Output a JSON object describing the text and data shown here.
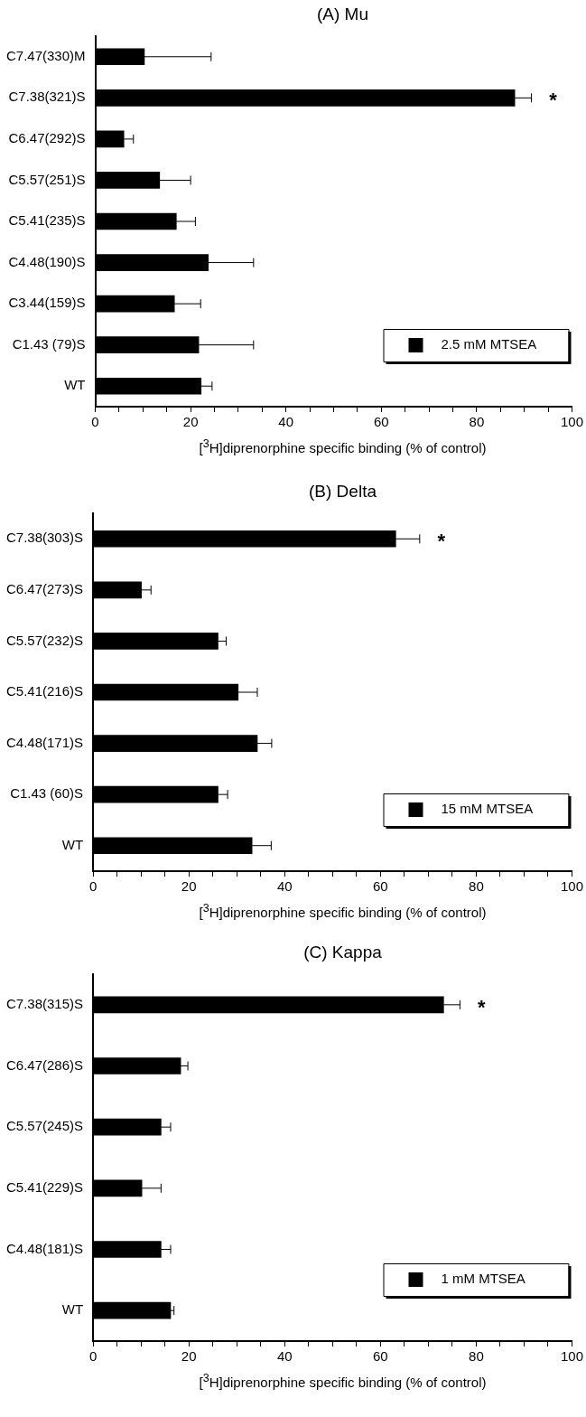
{
  "chart_data": [
    {
      "type": "bar",
      "orientation": "horizontal",
      "title": "(A) Mu",
      "xlabel": "[$^{3}$H]diprenorphine specific binding (% of control)",
      "categories": [
        "C7.47(330)M",
        "C7.38(321)S",
        "C6.47(292)S",
        "C5.57(251)S",
        "C5.41(235)S",
        "C4.48(190)S",
        "C3.44(159)S",
        "C1.43 (79)S",
        "WT"
      ],
      "series": [
        {
          "name": "2.5 mM MTSEA",
          "color": "#000000",
          "values": [
            10.3,
            88,
            6,
            13.5,
            17,
            23.7,
            16.6,
            21.7,
            22.2
          ],
          "errors": [
            [
              10.3,
              24.3
            ],
            [
              88,
              91.5
            ],
            [
              6,
              8
            ],
            [
              13.5,
              20
            ],
            [
              17,
              21
            ],
            [
              23.7,
              33.2
            ],
            [
              16.6,
              22.1
            ],
            [
              21.7,
              33.2
            ],
            [
              22.2,
              24.5
            ]
          ]
        }
      ],
      "xlim": [
        0,
        100
      ],
      "xticks": [
        0,
        {
          "value": 5,
          "label": null
        },
        {
          "value": 10,
          "label": null
        },
        {
          "value": 15,
          "label": null
        },
        20,
        {
          "value": 25,
          "label": null
        },
        {
          "value": 30,
          "label": null
        },
        {
          "value": 35,
          "label": null
        },
        40,
        {
          "value": 45,
          "label": null
        },
        {
          "value": 50,
          "label": null
        },
        {
          "value": 55,
          "label": null
        },
        60,
        {
          "value": 65,
          "label": null
        },
        {
          "value": 70,
          "label": null
        },
        {
          "value": 75,
          "label": null
        },
        80,
        {
          "value": 85,
          "label": null
        },
        {
          "value": 90,
          "label": null
        },
        {
          "value": 95,
          "label": null
        },
        100
      ],
      "annotations": [
        "*"
      ],
      "legend": "bottom right",
      "grid": false
    },
    {
      "type": "bar",
      "orientation": "horizontal",
      "title": "(B) Delta",
      "xlabel": "[$^{3}$H]diprenorphine specific binding (% of control)",
      "categories": [
        "C7.38(303)S",
        "C6.47(273)S",
        "C5.57(232)S",
        "C5.41(216)S",
        "C4.48(171)S",
        "C1.43 (60)S",
        "WT"
      ],
      "series": [
        {
          "name": "15 mM MTSEA",
          "color": "#000000",
          "values": [
            63.2,
            10.1,
            26.1,
            30.3,
            34.3,
            26.1,
            33.2
          ],
          "errors": [
            [
              63.2,
              68.2
            ],
            [
              10.1,
              12.1
            ],
            [
              26.1,
              27.8
            ],
            [
              30.3,
              34.3
            ],
            [
              34.3,
              37.3
            ],
            [
              26.1,
              28.1
            ],
            [
              33.2,
              37.2
            ]
          ]
        }
      ],
      "xlim": [
        0,
        100
      ],
      "xticks": [
        0,
        {
          "value": 5,
          "label": null
        },
        {
          "value": 10,
          "label": null
        },
        {
          "value": 15,
          "label": null
        },
        20,
        {
          "value": 25,
          "label": null
        },
        {
          "value": 30,
          "label": null
        },
        {
          "value": 35,
          "label": null
        },
        40,
        {
          "value": 45,
          "label": null
        },
        {
          "value": 50,
          "label": null
        },
        {
          "value": 55,
          "label": null
        },
        60,
        {
          "value": 65,
          "label": null
        },
        {
          "value": 70,
          "label": null
        },
        {
          "value": 75,
          "label": null
        },
        80,
        {
          "value": 85,
          "label": null
        },
        {
          "value": 90,
          "label": null
        },
        {
          "value": 95,
          "label": null
        },
        100
      ],
      "annotations": [
        "*"
      ],
      "legend": "bottom right",
      "grid": false
    },
    {
      "type": "bar",
      "orientation": "horizontal",
      "title": "(C) Kappa",
      "xlabel": "[$^{3}$H]diprenorphine specific binding (% of control)",
      "categories": [
        "C7.38(315)S",
        "C6.47(286)S",
        "C5.57(245)S",
        "C5.41(229)S",
        "C4.48(181)S",
        "WT"
      ],
      "series": [
        {
          "name": "1 mM MTSEA",
          "color": "#000000",
          "values": [
            73.2,
            18.3,
            14.2,
            10.2,
            14.2,
            16.2
          ],
          "errors": [
            [
              73.2,
              76.6
            ],
            [
              18.3,
              19.8
            ],
            [
              14.2,
              16.2
            ],
            [
              10.2,
              14.2
            ],
            [
              14.2,
              16.2
            ],
            [
              16.2,
              16.9
            ]
          ]
        }
      ],
      "xlim": [
        0,
        100
      ],
      "xticks": [
        0,
        {
          "value": 5,
          "label": null
        },
        {
          "value": 10,
          "label": null
        },
        {
          "value": 15,
          "label": null
        },
        20,
        {
          "value": 25,
          "label": null
        },
        {
          "value": 30,
          "label": null
        },
        {
          "value": 35,
          "label": null
        },
        40,
        {
          "value": 45,
          "label": null
        },
        {
          "value": 50,
          "label": null
        },
        {
          "value": 55,
          "label": null
        },
        60,
        {
          "value": 65,
          "label": null
        },
        {
          "value": 70,
          "label": null
        },
        {
          "value": 75,
          "label": null
        },
        80,
        {
          "value": 85,
          "label": null
        },
        {
          "value": 90,
          "label": null
        },
        {
          "value": 95,
          "label": null
        },
        100
      ],
      "annotations": [
        "*"
      ],
      "legend": "bottom right",
      "grid": false
    }
  ]
}
